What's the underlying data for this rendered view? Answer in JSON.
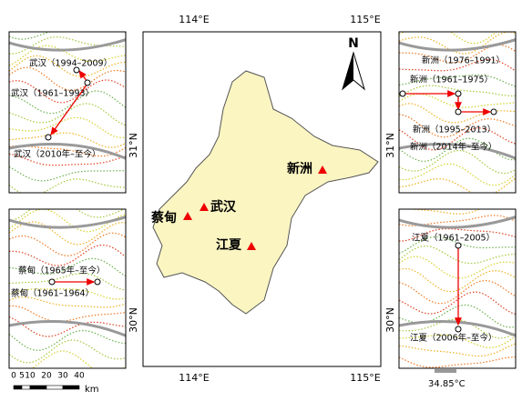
{
  "graticule": {
    "longitudes": [
      "114°E",
      "115°E"
    ],
    "latitudes": [
      "31°N",
      "30°N"
    ]
  },
  "north_arrow": "N",
  "stations": [
    {
      "name": "蔡甸"
    },
    {
      "name": "武汉"
    },
    {
      "name": "江夏"
    },
    {
      "name": "新洲"
    }
  ],
  "insets": {
    "wuhan": [
      "武汉（1994–2009）",
      "武汉（1961–1993）",
      "武汉（2010年–至今）"
    ],
    "caidian": [
      "蔡甸（1965年–至今）",
      "蔡甸（1961–1964）"
    ],
    "xinzhou": [
      "新洲（1976–1991）",
      "新洲（1961–1975）",
      "新洲（1995–2013）",
      "新洲（2014年–至今）"
    ],
    "jiangxia": [
      "江夏（1961–2005）",
      "江夏（2006年–至今）"
    ]
  },
  "scale_bar": {
    "ticks": [
      0,
      5,
      10,
      20,
      30,
      40
    ],
    "unit": "km"
  },
  "legend": "34.85°C"
}
